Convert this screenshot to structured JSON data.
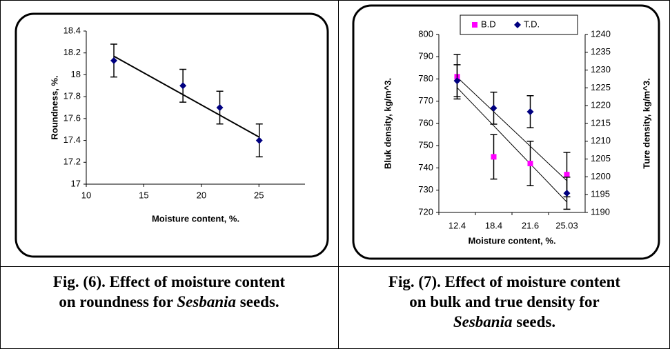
{
  "figures": [
    {
      "chart_data": {
        "type": "scatter",
        "x": [
          12.4,
          18.4,
          21.6,
          25.03
        ],
        "series": [
          {
            "values": [
              18.13,
              17.9,
              17.7,
              17.4
            ],
            "errors": [
              0.15,
              0.15,
              0.15,
              0.15
            ],
            "color": "#000080"
          }
        ],
        "trendline": {
          "x": [
            12.4,
            25.03
          ],
          "values": [
            18.17,
            17.43
          ]
        },
        "xlim": [
          10,
          29
        ],
        "xticks": [
          10,
          15,
          20,
          25
        ],
        "ylim": [
          17,
          18.4
        ],
        "yticks": [
          17,
          17.2,
          17.4,
          17.6,
          17.8,
          18,
          18.2,
          18.4
        ],
        "xlabel": "Moisture content, %.",
        "ylabel": "Roundness, %."
      },
      "caption": [
        [
          {
            "text": "Fig. (6). Effect of moisture content"
          }
        ],
        [
          {
            "text": "on roundness for "
          },
          {
            "text": "Sesbania",
            "italic": true
          },
          {
            "text": " seeds."
          }
        ]
      ]
    },
    {
      "chart_data": {
        "type": "line",
        "categories": [
          "12.4",
          "18.4",
          "21.6",
          "25.03"
        ],
        "series": [
          {
            "name": "B.D",
            "color": "#ff00ff",
            "marker": "square",
            "values": [
              781,
              745,
              742,
              737
            ],
            "errors": [
              10,
              10,
              10,
              10
            ],
            "trendline": [
              776.1,
              724.7
            ]
          },
          {
            "name": "T.D.",
            "color": "#000080",
            "marker": "diamond",
            "axis": "y2",
            "values": [
              1227,
              1219.3,
              1218.3,
              1195.4
            ],
            "errors": [
              4.5,
              4.5,
              4.5,
              4.5
            ],
            "trendline": [
              1228,
              1198.9
            ]
          }
        ],
        "ylim": [
          720,
          800
        ],
        "yticks": [
          720,
          730,
          740,
          750,
          760,
          770,
          780,
          790,
          800
        ],
        "y2lim": [
          1190,
          1240
        ],
        "y2ticks": [
          1190,
          1195,
          1200,
          1205,
          1210,
          1215,
          1220,
          1225,
          1230,
          1235,
          1240
        ],
        "xlabel": "Moisture content, %.",
        "ylabel": "Bluk density, kg/m^3.",
        "y2label": "Ture density, kg/m^3.",
        "legend": "top"
      },
      "caption": [
        [
          {
            "text": "Fig. (7). Effect of moisture content"
          }
        ],
        [
          {
            "text": "on bulk and true density for"
          }
        ],
        [
          {
            "text": "Sesbania",
            "italic": true
          },
          {
            "text": " seeds."
          }
        ]
      ]
    }
  ]
}
